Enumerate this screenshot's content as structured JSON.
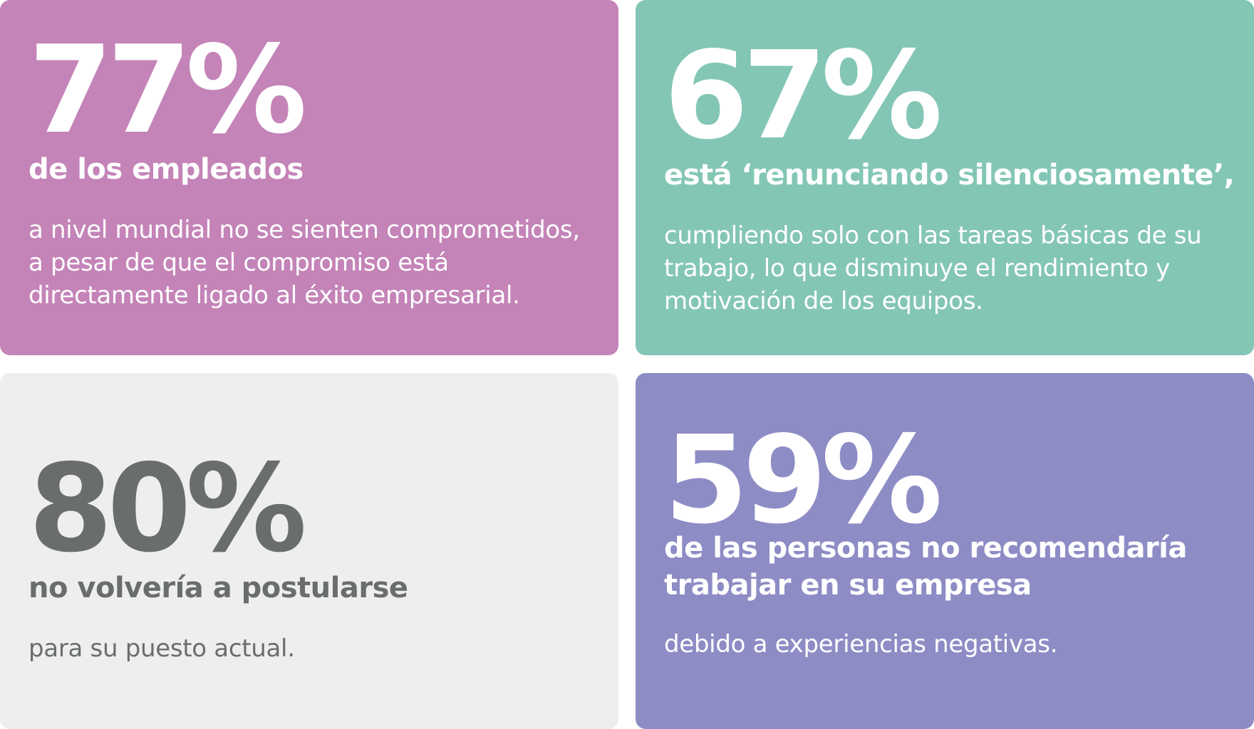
{
  "colors": {
    "card_pink": "#c484b8",
    "card_teal": "#84c6b5",
    "card_gray": "#eeeeee",
    "card_purple": "#8e8cc5",
    "text_white": "#ffffff",
    "text_dark_gray": "#6a6d6d"
  },
  "cards": [
    {
      "stat": "77%",
      "headline": "de los empleados",
      "body": "a nivel mundial no se sienten comprometidos, a pesar de que el compromiso está directamente ligado al éxito empresarial."
    },
    {
      "stat": "67%",
      "headline": "está ‘renunciando silenciosamente’,",
      "body": "cumpliendo solo con las tareas básicas de su trabajo, lo que disminuye el rendimiento y motivación de los equipos."
    },
    {
      "stat": "80%",
      "headline": "no volvería a postularse",
      "body": "para su puesto actual."
    },
    {
      "stat": "59%",
      "headline": "de las personas no recomendaría trabajar en su empresa",
      "body": "debido a experiencias negativas."
    }
  ]
}
